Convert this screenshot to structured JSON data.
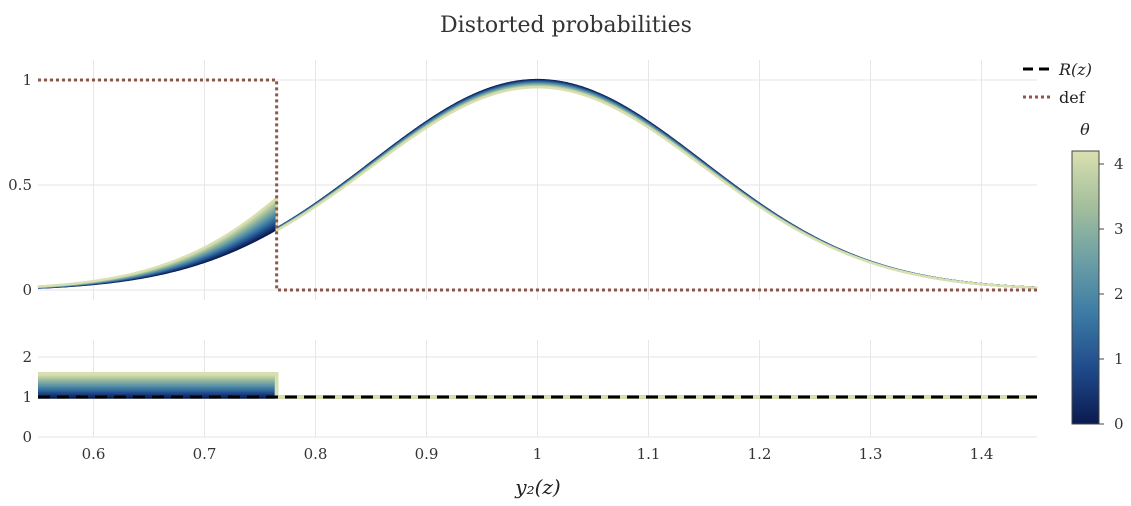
{
  "chart_data": {
    "title": "Distorted probabilities",
    "xlabel": "y₂(z)",
    "x_ticks": [
      "0.6",
      "0.7",
      "0.8",
      "0.9",
      "1",
      "1.1",
      "1.2",
      "1.3",
      "1.4"
    ],
    "xlim": [
      0.55,
      1.45
    ],
    "threshold": 0.765,
    "panels": [
      {
        "id": "top",
        "type": "line",
        "ylim": [
          0,
          1
        ],
        "y_ticks": [
          "0",
          "0.5",
          "1"
        ],
        "series": [
          {
            "name": "def",
            "style": "dotted",
            "color": "#8c564b",
            "values": [
              [
                0.55,
                1
              ],
              [
                0.765,
                1
              ],
              [
                0.765,
                0
              ],
              [
                1.45,
                0
              ]
            ]
          }
        ],
        "theta_family": {
          "description": "normal density scaled to peak 1 at x=1, sd≈0.15; left of threshold distorted upward with θ",
          "left_value_at_threshold": {
            "theta_min": 0.29,
            "theta_max": 0.44
          },
          "peak": {
            "theta_min": 1.0,
            "theta_max": 0.965
          }
        }
      },
      {
        "id": "bottom",
        "type": "line",
        "ylim": [
          0,
          2.3
        ],
        "y_ticks": [
          "0",
          "1",
          "2"
        ],
        "series": [
          {
            "name": "R(z)",
            "style": "dashed",
            "color": "#000000",
            "values": [
              [
                0.55,
                1
              ],
              [
                1.45,
                1
              ]
            ]
          }
        ],
        "theta_family": {
          "left_value": {
            "theta_min": 1.0,
            "theta_max": 1.58
          },
          "right_value": 1.0
        }
      }
    ],
    "legend": {
      "placement": "top-right",
      "entries": [
        {
          "label": "R(z)",
          "style": "dashed",
          "color": "#000000"
        },
        {
          "label": "def",
          "style": "dotted",
          "color": "#8c564b"
        }
      ]
    },
    "colorbar": {
      "title": "θ",
      "range": [
        0,
        4.2
      ],
      "ticks": [
        "0",
        "1",
        "2",
        "3",
        "4"
      ],
      "colorscale": [
        "#0b1a4f",
        "#1f4a8a",
        "#3c7aa5",
        "#6c9fa5",
        "#a4bf9c",
        "#d9e0b0"
      ]
    },
    "theta_values": [
      0,
      0.3,
      0.6,
      0.9,
      1.2,
      1.5,
      1.8,
      2.1,
      2.4,
      2.7,
      3.0,
      3.3,
      3.6,
      3.9,
      4.2
    ]
  }
}
